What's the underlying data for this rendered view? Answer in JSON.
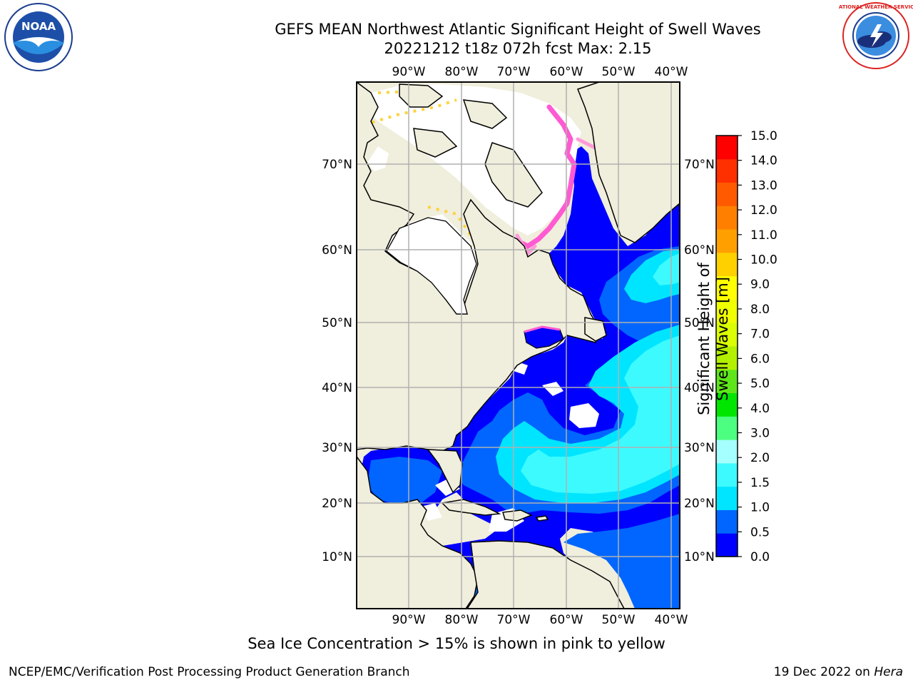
{
  "title_line1": "GEFS MEAN Northwest Atlantic Significant Height of Swell Waves",
  "title_line2": "20221212 t18z 072h fcst   Max: 2.15",
  "logo_noaa": "NOAA",
  "logo_nws": "NATIONAL WEATHER SERVICE",
  "lon_labels": [
    "90°W",
    "80°W",
    "70°W",
    "60°W",
    "50°W",
    "40°W"
  ],
  "lat_labels": [
    "70°N",
    "60°N",
    "50°N",
    "40°N",
    "30°N",
    "20°N",
    "10°N"
  ],
  "colorbar": {
    "label": "Significant Height of Swell Waves [m]",
    "ticks": [
      "15.0",
      "14.0",
      "13.0",
      "12.0",
      "11.0",
      "10.0",
      "9.0",
      "8.0",
      "7.0",
      "6.0",
      "5.0",
      "4.0",
      "3.0",
      "2.0",
      "1.5",
      "1.0",
      "0.5",
      "0.0"
    ],
    "colors": [
      "#0000ff",
      "#0066ff",
      "#00e5ff",
      "#3dfaff",
      "#a6ffff",
      "#4dff80",
      "#00e600",
      "#5ee61a",
      "#b3f000",
      "#d9ff00",
      "#f0ff00",
      "#ffff00",
      "#ffd000",
      "#ffa000",
      "#ff8000",
      "#ff5a00",
      "#ff3000",
      "#ff0000"
    ]
  },
  "colors": {
    "land": "#f0eedc",
    "ice": "#ffffff",
    "grid": "#b0b0b0"
  },
  "caption": "Sea Ice Concentration > 15% is shown in pink to yellow",
  "footer_left": "NCEP/EMC/Verification Post Processing Product Generation Branch",
  "footer_right_date": "19 Dec 2022 on",
  "footer_right_host": "Hera"
}
